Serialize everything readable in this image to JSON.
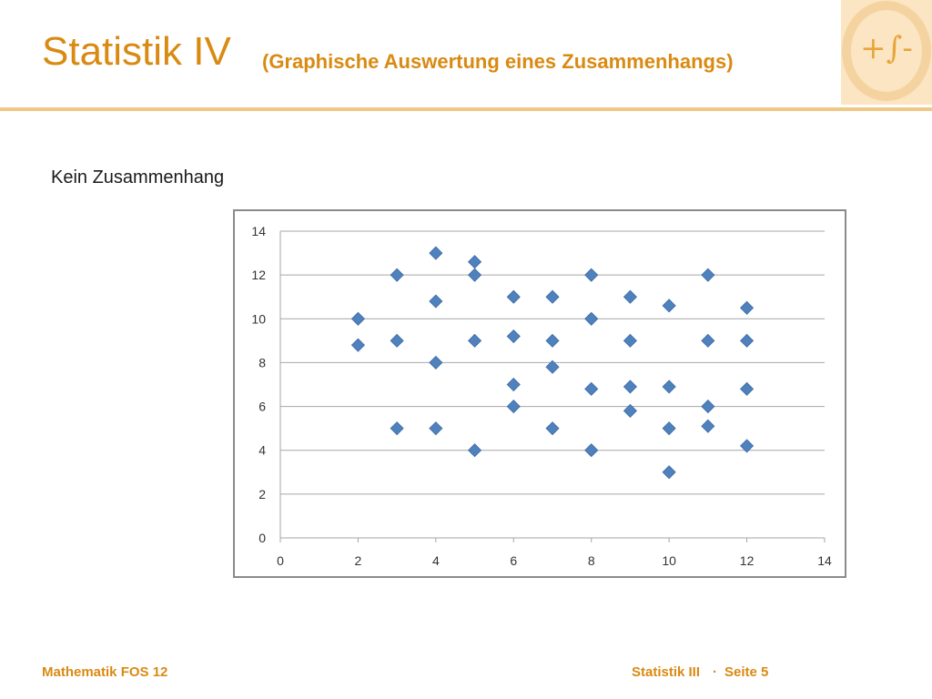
{
  "header": {
    "title": "Statistik IV",
    "subtitle": "(Graphische Auswertung eines Zusammenhangs)",
    "logo_text": "+∫-"
  },
  "colors": {
    "accent": "#d98a12",
    "rule": "#f0c886",
    "logo_bg": "#fbe5c2",
    "marker": "#4f81bd",
    "grid": "#a6a6a6"
  },
  "chart_heading": "Kein Zusammenhang",
  "chart_data": {
    "type": "scatter",
    "title": "",
    "xlabel": "",
    "ylabel": "",
    "xlim": [
      0,
      14
    ],
    "ylim": [
      0,
      14
    ],
    "x_ticks": [
      "0",
      "2",
      "4",
      "6",
      "8",
      "10",
      "12",
      "14"
    ],
    "y_ticks": [
      "0",
      "2",
      "4",
      "6",
      "8",
      "10",
      "12",
      "14"
    ],
    "grid": "horizontal",
    "legend": "none",
    "points": [
      {
        "x": 2,
        "y": 10
      },
      {
        "x": 2,
        "y": 8.8
      },
      {
        "x": 3,
        "y": 12
      },
      {
        "x": 3,
        "y": 9
      },
      {
        "x": 3,
        "y": 5
      },
      {
        "x": 4,
        "y": 13
      },
      {
        "x": 4,
        "y": 10.8
      },
      {
        "x": 4,
        "y": 8
      },
      {
        "x": 4,
        "y": 5
      },
      {
        "x": 5,
        "y": 12.6
      },
      {
        "x": 5,
        "y": 12
      },
      {
        "x": 5,
        "y": 9
      },
      {
        "x": 5,
        "y": 4
      },
      {
        "x": 6,
        "y": 11
      },
      {
        "x": 6,
        "y": 9.2
      },
      {
        "x": 6,
        "y": 7
      },
      {
        "x": 6,
        "y": 6
      },
      {
        "x": 7,
        "y": 11
      },
      {
        "x": 7,
        "y": 9
      },
      {
        "x": 7,
        "y": 7.8
      },
      {
        "x": 7,
        "y": 5
      },
      {
        "x": 8,
        "y": 12
      },
      {
        "x": 8,
        "y": 10
      },
      {
        "x": 8,
        "y": 6.8
      },
      {
        "x": 8,
        "y": 4
      },
      {
        "x": 9,
        "y": 11
      },
      {
        "x": 9,
        "y": 9
      },
      {
        "x": 9,
        "y": 6.9
      },
      {
        "x": 9,
        "y": 5.8
      },
      {
        "x": 10,
        "y": 10.6
      },
      {
        "x": 10,
        "y": 6.9
      },
      {
        "x": 10,
        "y": 5
      },
      {
        "x": 10,
        "y": 3
      },
      {
        "x": 11,
        "y": 12
      },
      {
        "x": 11,
        "y": 9
      },
      {
        "x": 11,
        "y": 6
      },
      {
        "x": 11,
        "y": 5.1
      },
      {
        "x": 12,
        "y": 10.5
      },
      {
        "x": 12,
        "y": 9
      },
      {
        "x": 12,
        "y": 6.8
      },
      {
        "x": 12,
        "y": 4.2
      }
    ]
  },
  "footer": {
    "left": "Mathematik FOS 12",
    "right_section": "Statistik III",
    "separator": "·",
    "page": "Seite 5"
  }
}
